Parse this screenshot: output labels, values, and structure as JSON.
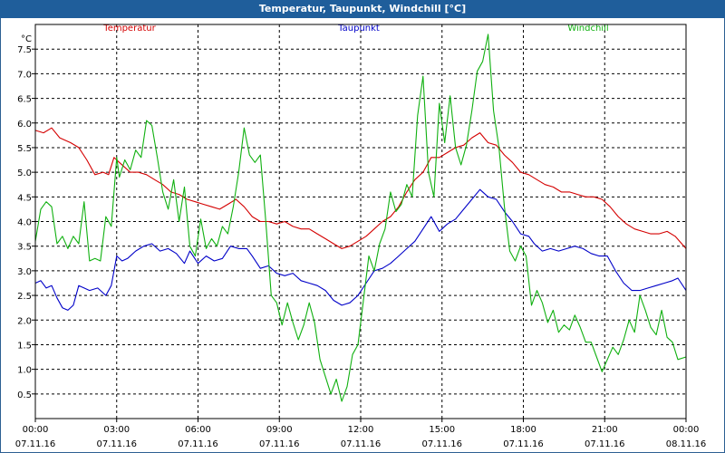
{
  "window": {
    "title": "Temperatur, Taupunkt, Windchill [°C]"
  },
  "colors": {
    "titlebar": "#1f5e9b",
    "temperatur": "#d40000",
    "taupunkt": "#0000c8",
    "windchill": "#10b010",
    "grid": "#000000"
  },
  "chart_data": {
    "type": "line",
    "title": "Temperatur, Taupunkt, Windchill [°C]",
    "ylabel": "°C",
    "ylim": [
      0,
      8
    ],
    "yticks": [
      "0.5",
      "1.0",
      "1.5",
      "2.0",
      "2.5",
      "3.0",
      "3.5",
      "4.0",
      "4.5",
      "5.0",
      "5.5",
      "6.0",
      "6.5",
      "7.0",
      "7.5"
    ],
    "xlim": [
      0,
      24
    ],
    "xticks": [
      {
        "x": 0,
        "time": "00:00",
        "date": "07.11.16"
      },
      {
        "x": 3,
        "time": "03:00",
        "date": "07.11.16"
      },
      {
        "x": 6,
        "time": "06:00",
        "date": "07.11.16"
      },
      {
        "x": 9,
        "time": "09:00",
        "date": "07.11.16"
      },
      {
        "x": 12,
        "time": "12:00",
        "date": "07.11.16"
      },
      {
        "x": 15,
        "time": "15:00",
        "date": "07.11.16"
      },
      {
        "x": 18,
        "time": "18:00",
        "date": "07.11.16"
      },
      {
        "x": 21,
        "time": "21:00",
        "date": "07.11.16"
      },
      {
        "x": 24,
        "time": "00:00",
        "date": "08.11.16"
      }
    ],
    "grid": true,
    "legend_placement": "top",
    "series": [
      {
        "name": "Temperatur",
        "color": "#d40000",
        "points": [
          [
            0,
            5.85
          ],
          [
            0.3,
            5.8
          ],
          [
            0.6,
            5.9
          ],
          [
            0.9,
            5.7
          ],
          [
            1.3,
            5.6
          ],
          [
            1.6,
            5.5
          ],
          [
            1.9,
            5.25
          ],
          [
            2.2,
            4.95
          ],
          [
            2.5,
            5.0
          ],
          [
            2.7,
            4.95
          ],
          [
            2.9,
            5.3
          ],
          [
            3.1,
            5.2
          ],
          [
            3.3,
            5.1
          ],
          [
            3.5,
            5.0
          ],
          [
            3.8,
            5.0
          ],
          [
            4.1,
            4.95
          ],
          [
            4.4,
            4.85
          ],
          [
            4.7,
            4.75
          ],
          [
            5.0,
            4.6
          ],
          [
            5.3,
            4.55
          ],
          [
            5.6,
            4.45
          ],
          [
            5.9,
            4.4
          ],
          [
            6.2,
            4.35
          ],
          [
            6.5,
            4.3
          ],
          [
            6.8,
            4.25
          ],
          [
            7.1,
            4.35
          ],
          [
            7.4,
            4.45
          ],
          [
            7.7,
            4.3
          ],
          [
            8.0,
            4.1
          ],
          [
            8.3,
            4.0
          ],
          [
            8.6,
            4.0
          ],
          [
            8.9,
            3.95
          ],
          [
            9.2,
            4.0
          ],
          [
            9.5,
            3.9
          ],
          [
            9.8,
            3.85
          ],
          [
            10.1,
            3.85
          ],
          [
            10.4,
            3.75
          ],
          [
            10.7,
            3.65
          ],
          [
            11.0,
            3.55
          ],
          [
            11.3,
            3.45
          ],
          [
            11.6,
            3.5
          ],
          [
            11.9,
            3.6
          ],
          [
            12.2,
            3.7
          ],
          [
            12.5,
            3.85
          ],
          [
            12.8,
            4.0
          ],
          [
            13.1,
            4.1
          ],
          [
            13.4,
            4.3
          ],
          [
            13.7,
            4.6
          ],
          [
            14.0,
            4.85
          ],
          [
            14.3,
            5.0
          ],
          [
            14.6,
            5.3
          ],
          [
            14.9,
            5.3
          ],
          [
            15.2,
            5.4
          ],
          [
            15.5,
            5.5
          ],
          [
            15.8,
            5.55
          ],
          [
            16.1,
            5.7
          ],
          [
            16.4,
            5.8
          ],
          [
            16.7,
            5.6
          ],
          [
            17.0,
            5.55
          ],
          [
            17.3,
            5.35
          ],
          [
            17.6,
            5.2
          ],
          [
            17.9,
            5.0
          ],
          [
            18.2,
            4.95
          ],
          [
            18.5,
            4.85
          ],
          [
            18.8,
            4.75
          ],
          [
            19.1,
            4.7
          ],
          [
            19.4,
            4.6
          ],
          [
            19.7,
            4.6
          ],
          [
            20.0,
            4.55
          ],
          [
            20.3,
            4.5
          ],
          [
            20.6,
            4.5
          ],
          [
            20.9,
            4.45
          ],
          [
            21.2,
            4.3
          ],
          [
            21.5,
            4.1
          ],
          [
            21.8,
            3.95
          ],
          [
            22.1,
            3.85
          ],
          [
            22.4,
            3.8
          ],
          [
            22.7,
            3.75
          ],
          [
            23.0,
            3.75
          ],
          [
            23.3,
            3.8
          ],
          [
            23.6,
            3.7
          ],
          [
            24.0,
            3.45
          ]
        ]
      },
      {
        "name": "Taupunkt",
        "color": "#0000c8",
        "points": [
          [
            0,
            2.75
          ],
          [
            0.2,
            2.8
          ],
          [
            0.4,
            2.65
          ],
          [
            0.6,
            2.7
          ],
          [
            0.8,
            2.45
          ],
          [
            1.0,
            2.25
          ],
          [
            1.2,
            2.2
          ],
          [
            1.4,
            2.3
          ],
          [
            1.6,
            2.7
          ],
          [
            1.8,
            2.65
          ],
          [
            2.0,
            2.6
          ],
          [
            2.3,
            2.65
          ],
          [
            2.6,
            2.5
          ],
          [
            2.8,
            2.7
          ],
          [
            3.0,
            3.3
          ],
          [
            3.2,
            3.2
          ],
          [
            3.4,
            3.25
          ],
          [
            3.7,
            3.4
          ],
          [
            4.0,
            3.5
          ],
          [
            4.3,
            3.55
          ],
          [
            4.6,
            3.4
          ],
          [
            4.9,
            3.45
          ],
          [
            5.2,
            3.35
          ],
          [
            5.5,
            3.15
          ],
          [
            5.7,
            3.4
          ],
          [
            6.0,
            3.15
          ],
          [
            6.3,
            3.3
          ],
          [
            6.6,
            3.2
          ],
          [
            6.9,
            3.25
          ],
          [
            7.2,
            3.5
          ],
          [
            7.5,
            3.45
          ],
          [
            7.8,
            3.45
          ],
          [
            8.0,
            3.3
          ],
          [
            8.3,
            3.05
          ],
          [
            8.6,
            3.1
          ],
          [
            8.9,
            2.95
          ],
          [
            9.2,
            2.9
          ],
          [
            9.5,
            2.95
          ],
          [
            9.8,
            2.8
          ],
          [
            10.1,
            2.75
          ],
          [
            10.4,
            2.7
          ],
          [
            10.7,
            2.6
          ],
          [
            11.0,
            2.4
          ],
          [
            11.3,
            2.3
          ],
          [
            11.6,
            2.35
          ],
          [
            11.9,
            2.5
          ],
          [
            12.2,
            2.75
          ],
          [
            12.5,
            3.0
          ],
          [
            12.8,
            3.05
          ],
          [
            13.1,
            3.15
          ],
          [
            13.4,
            3.3
          ],
          [
            13.7,
            3.45
          ],
          [
            14.0,
            3.6
          ],
          [
            14.3,
            3.85
          ],
          [
            14.6,
            4.1
          ],
          [
            14.9,
            3.8
          ],
          [
            15.2,
            3.95
          ],
          [
            15.5,
            4.05
          ],
          [
            15.8,
            4.25
          ],
          [
            16.1,
            4.45
          ],
          [
            16.4,
            4.65
          ],
          [
            16.7,
            4.5
          ],
          [
            17.0,
            4.45
          ],
          [
            17.3,
            4.2
          ],
          [
            17.6,
            4.0
          ],
          [
            17.9,
            3.75
          ],
          [
            18.2,
            3.7
          ],
          [
            18.4,
            3.55
          ],
          [
            18.7,
            3.4
          ],
          [
            19.0,
            3.45
          ],
          [
            19.3,
            3.4
          ],
          [
            19.6,
            3.45
          ],
          [
            19.9,
            3.5
          ],
          [
            20.2,
            3.45
          ],
          [
            20.5,
            3.35
          ],
          [
            20.8,
            3.3
          ],
          [
            21.1,
            3.3
          ],
          [
            21.4,
            3.0
          ],
          [
            21.7,
            2.75
          ],
          [
            22.0,
            2.6
          ],
          [
            22.3,
            2.6
          ],
          [
            22.6,
            2.65
          ],
          [
            22.9,
            2.7
          ],
          [
            23.2,
            2.75
          ],
          [
            23.5,
            2.8
          ],
          [
            23.7,
            2.85
          ],
          [
            24.0,
            2.6
          ]
        ]
      },
      {
        "name": "Windchill",
        "color": "#10b010",
        "points": [
          [
            0,
            3.6
          ],
          [
            0.2,
            4.25
          ],
          [
            0.4,
            4.4
          ],
          [
            0.6,
            4.3
          ],
          [
            0.8,
            3.55
          ],
          [
            1.0,
            3.7
          ],
          [
            1.2,
            3.45
          ],
          [
            1.4,
            3.7
          ],
          [
            1.6,
            3.55
          ],
          [
            1.8,
            4.4
          ],
          [
            2.0,
            3.2
          ],
          [
            2.2,
            3.25
          ],
          [
            2.4,
            3.2
          ],
          [
            2.6,
            4.1
          ],
          [
            2.8,
            3.9
          ],
          [
            3.0,
            5.3
          ],
          [
            3.1,
            4.9
          ],
          [
            3.3,
            5.25
          ],
          [
            3.5,
            5.05
          ],
          [
            3.7,
            5.45
          ],
          [
            3.9,
            5.3
          ],
          [
            4.1,
            6.05
          ],
          [
            4.3,
            5.95
          ],
          [
            4.5,
            5.3
          ],
          [
            4.7,
            4.6
          ],
          [
            4.9,
            4.25
          ],
          [
            5.1,
            4.85
          ],
          [
            5.3,
            4.0
          ],
          [
            5.5,
            4.7
          ],
          [
            5.7,
            3.5
          ],
          [
            5.9,
            3.3
          ],
          [
            6.1,
            4.05
          ],
          [
            6.3,
            3.45
          ],
          [
            6.5,
            3.65
          ],
          [
            6.7,
            3.5
          ],
          [
            6.9,
            3.9
          ],
          [
            7.1,
            3.75
          ],
          [
            7.3,
            4.3
          ],
          [
            7.5,
            5.0
          ],
          [
            7.7,
            5.9
          ],
          [
            7.9,
            5.35
          ],
          [
            8.1,
            5.2
          ],
          [
            8.3,
            5.35
          ],
          [
            8.5,
            4.0
          ],
          [
            8.7,
            2.5
          ],
          [
            8.9,
            2.35
          ],
          [
            9.1,
            1.9
          ],
          [
            9.3,
            2.35
          ],
          [
            9.5,
            1.95
          ],
          [
            9.7,
            1.6
          ],
          [
            9.9,
            1.9
          ],
          [
            10.1,
            2.35
          ],
          [
            10.3,
            1.95
          ],
          [
            10.5,
            1.2
          ],
          [
            10.7,
            0.85
          ],
          [
            10.9,
            0.5
          ],
          [
            11.1,
            0.8
          ],
          [
            11.3,
            0.35
          ],
          [
            11.5,
            0.65
          ],
          [
            11.7,
            1.3
          ],
          [
            11.9,
            1.5
          ],
          [
            12.1,
            2.4
          ],
          [
            12.3,
            3.3
          ],
          [
            12.5,
            3.0
          ],
          [
            12.7,
            3.55
          ],
          [
            12.9,
            3.85
          ],
          [
            13.1,
            4.6
          ],
          [
            13.3,
            4.2
          ],
          [
            13.5,
            4.35
          ],
          [
            13.7,
            4.75
          ],
          [
            13.9,
            4.5
          ],
          [
            14.1,
            6.15
          ],
          [
            14.3,
            6.95
          ],
          [
            14.5,
            5.0
          ],
          [
            14.7,
            4.5
          ],
          [
            14.9,
            6.4
          ],
          [
            15.1,
            5.6
          ],
          [
            15.3,
            6.55
          ],
          [
            15.5,
            5.5
          ],
          [
            15.7,
            5.15
          ],
          [
            15.9,
            5.55
          ],
          [
            16.1,
            6.25
          ],
          [
            16.3,
            7.05
          ],
          [
            16.5,
            7.25
          ],
          [
            16.7,
            7.8
          ],
          [
            16.9,
            6.25
          ],
          [
            17.1,
            5.5
          ],
          [
            17.3,
            4.3
          ],
          [
            17.5,
            3.4
          ],
          [
            17.7,
            3.2
          ],
          [
            17.9,
            3.5
          ],
          [
            18.1,
            3.3
          ],
          [
            18.3,
            2.3
          ],
          [
            18.5,
            2.6
          ],
          [
            18.7,
            2.35
          ],
          [
            18.9,
            1.95
          ],
          [
            19.1,
            2.2
          ],
          [
            19.3,
            1.75
          ],
          [
            19.5,
            1.9
          ],
          [
            19.7,
            1.8
          ],
          [
            19.9,
            2.1
          ],
          [
            20.1,
            1.85
          ],
          [
            20.3,
            1.55
          ],
          [
            20.5,
            1.55
          ],
          [
            20.7,
            1.25
          ],
          [
            20.9,
            0.95
          ],
          [
            21.1,
            1.2
          ],
          [
            21.3,
            1.45
          ],
          [
            21.5,
            1.3
          ],
          [
            21.7,
            1.6
          ],
          [
            21.9,
            2.0
          ],
          [
            22.1,
            1.75
          ],
          [
            22.3,
            2.5
          ],
          [
            22.5,
            2.2
          ],
          [
            22.7,
            1.85
          ],
          [
            22.9,
            1.7
          ],
          [
            23.1,
            2.2
          ],
          [
            23.3,
            1.65
          ],
          [
            23.5,
            1.55
          ],
          [
            23.7,
            1.2
          ],
          [
            24.0,
            1.25
          ]
        ]
      }
    ]
  }
}
